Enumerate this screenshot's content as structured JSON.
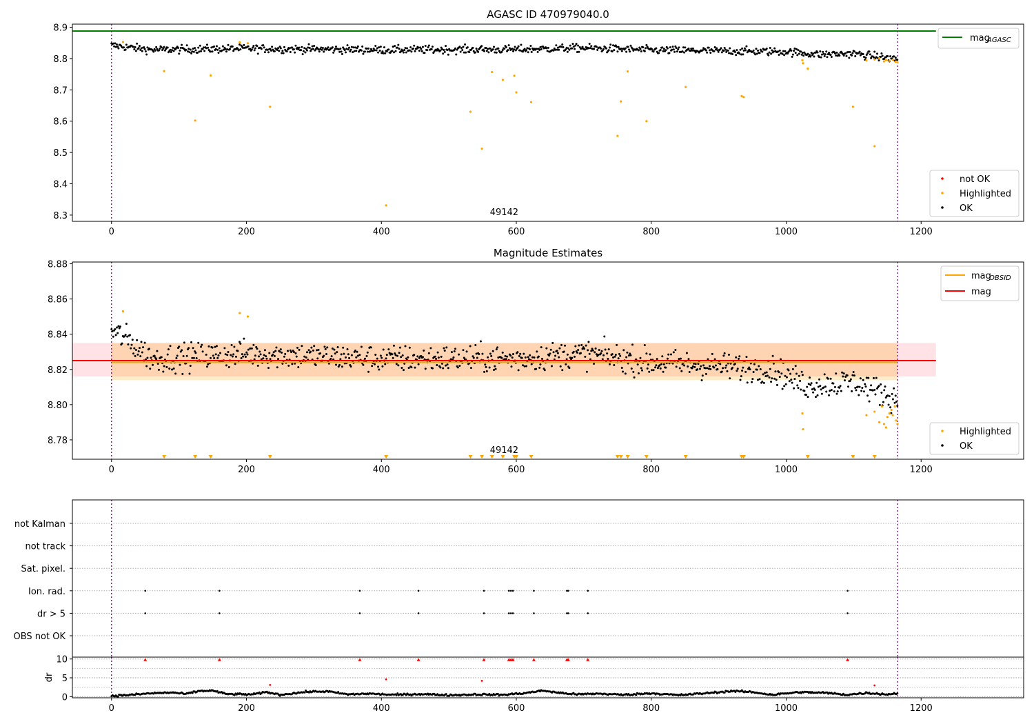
{
  "chart_data": [
    {
      "id": "p1",
      "type": "scatter",
      "title": "AGASC ID 470979040.0",
      "xlabel": "",
      "ylabel": "",
      "xlim": [
        -58,
        1352
      ],
      "ylim": [
        8.28,
        8.91
      ],
      "xticks": [
        0,
        200,
        400,
        600,
        800,
        1000,
        1200
      ],
      "yticks": [
        8.3,
        8.4,
        8.5,
        8.6,
        8.7,
        8.8,
        8.9
      ],
      "ytick_decimals": 1,
      "obsid_label": "49142",
      "obsid_label_x": 582,
      "obsid_boundaries": [
        0,
        1165
      ],
      "mag_agasc": 8.888,
      "mag_agasc_xrange": [
        -58,
        1222
      ],
      "mag_agasc_color": "#008000",
      "series_trend": {
        "name": "OK",
        "color": "#000000",
        "points": [
          [
            0,
            8.842
          ],
          [
            60,
            8.828
          ],
          [
            200,
            8.832
          ],
          [
            400,
            8.828
          ],
          [
            600,
            8.829
          ],
          [
            700,
            8.834
          ],
          [
            800,
            8.827
          ],
          [
            1000,
            8.822
          ],
          [
            1050,
            8.813
          ],
          [
            1100,
            8.816
          ],
          [
            1165,
            8.798
          ]
        ],
        "scatter": 0.014
      },
      "highlighted": {
        "name": "Highlighted",
        "color": "#ffa500",
        "points": [
          [
            17,
            8.853
          ],
          [
            78,
            8.76
          ],
          [
            124,
            8.602
          ],
          [
            147,
            8.746
          ],
          [
            190,
            8.852
          ],
          [
            202,
            8.849
          ],
          [
            235,
            8.646
          ],
          [
            407,
            8.331
          ],
          [
            532,
            8.63
          ],
          [
            549,
            8.512
          ],
          [
            564,
            8.757
          ],
          [
            580,
            8.732
          ],
          [
            597,
            8.745
          ],
          [
            600,
            8.692
          ],
          [
            622,
            8.661
          ],
          [
            750,
            8.553
          ],
          [
            755,
            8.663
          ],
          [
            765,
            8.759
          ],
          [
            793,
            8.6
          ],
          [
            851,
            8.709
          ],
          [
            934,
            8.68
          ],
          [
            937,
            8.677
          ],
          [
            1024,
            8.795
          ],
          [
            1025,
            8.785
          ],
          [
            1032,
            8.768
          ],
          [
            1099,
            8.646
          ],
          [
            1119,
            8.794
          ],
          [
            1131,
            8.52
          ],
          [
            1131,
            8.797
          ],
          [
            1138,
            8.801
          ],
          [
            1145,
            8.791
          ],
          [
            1148,
            8.795
          ],
          [
            1153,
            8.793
          ],
          [
            1158,
            8.796
          ],
          [
            1162,
            8.79
          ],
          [
            1165,
            8.788
          ]
        ]
      },
      "legend_top": [
        {
          "label": "mag",
          "sub": "AGASC",
          "color": "#008000"
        }
      ],
      "legend_bottom": [
        {
          "label": "not OK",
          "color": "#ff0000"
        },
        {
          "label": "Highlighted",
          "color": "#ffa500"
        },
        {
          "label": "OK",
          "color": "#000000"
        }
      ]
    },
    {
      "id": "p2",
      "type": "scatter",
      "title": "Magnitude Estimates",
      "xlabel": "",
      "ylabel": "",
      "xlim": [
        -58,
        1352
      ],
      "ylim": [
        8.769,
        8.881
      ],
      "xticks": [
        0,
        200,
        400,
        600,
        800,
        1000,
        1200
      ],
      "yticks": [
        8.78,
        8.8,
        8.82,
        8.84,
        8.86,
        8.88
      ],
      "ytick_decimals": 2,
      "obsid_label": "49142",
      "obsid_label_x": 582,
      "obsid_boundaries": [
        0,
        1165
      ],
      "mag": 8.825,
      "mag_band": [
        8.816,
        8.835
      ],
      "mag_band_xrange": [
        -58,
        1222
      ],
      "mag_obsid": 8.824,
      "mag_obsid_band": [
        8.814,
        8.835
      ],
      "mag_obsid_xrange": [
        0,
        1165
      ],
      "series_trend": {
        "name": "OK",
        "color": "#000000",
        "points": [
          [
            0,
            8.842
          ],
          [
            20,
            8.838
          ],
          [
            60,
            8.826
          ],
          [
            200,
            8.829
          ],
          [
            400,
            8.826
          ],
          [
            600,
            8.826
          ],
          [
            700,
            8.829
          ],
          [
            800,
            8.824
          ],
          [
            980,
            8.82
          ],
          [
            1030,
            8.811
          ],
          [
            1100,
            8.813
          ],
          [
            1165,
            8.803
          ]
        ],
        "scatter": 0.0085
      },
      "highlighted": {
        "name": "Highlighted",
        "color": "#ffa500",
        "points": [
          [
            17,
            8.853
          ],
          [
            190,
            8.852
          ],
          [
            202,
            8.85
          ],
          [
            1024,
            8.795
          ],
          [
            1025,
            8.786
          ],
          [
            1119,
            8.794
          ],
          [
            1131,
            8.796
          ],
          [
            1138,
            8.79
          ],
          [
            1142,
            8.799
          ],
          [
            1145,
            8.789
          ],
          [
            1148,
            8.787
          ],
          [
            1150,
            8.793
          ],
          [
            1153,
            8.795
          ],
          [
            1156,
            8.797
          ],
          [
            1158,
            8.794
          ],
          [
            1161,
            8.799
          ],
          [
            1163,
            8.791
          ],
          [
            1165,
            8.789
          ]
        ]
      },
      "offscale_markers_x": [
        78,
        124,
        147,
        235,
        407,
        532,
        549,
        564,
        580,
        597,
        600,
        622,
        750,
        755,
        765,
        793,
        851,
        934,
        937,
        1032,
        1099,
        1131
      ],
      "legend_top": [
        {
          "label": "mag",
          "sub": "OBSID",
          "color": "#ffa500"
        },
        {
          "label": "mag",
          "sub": "",
          "color": "#ff0000"
        }
      ],
      "legend_bottom": [
        {
          "label": "Highlighted",
          "color": "#ffa500"
        },
        {
          "label": "OK",
          "color": "#000000"
        }
      ]
    },
    {
      "id": "p3",
      "type": "scatter",
      "title": "",
      "xlabel": "",
      "ylabel": "",
      "xlim": [
        -58,
        1352
      ],
      "flag_rows": [
        "not Kalman",
        "not track",
        "Sat. pixel.",
        "Ion. rad.",
        "dr > 5",
        "OBS not OK"
      ],
      "flag_points": {
        "Ion. rad.": [
          50,
          160,
          368,
          455,
          552,
          589,
          592,
          595,
          626,
          675,
          677,
          706,
          1091
        ],
        "dr > 5": [
          50,
          160,
          368,
          455,
          552,
          589,
          592,
          595,
          626,
          675,
          677,
          706,
          1091
        ]
      },
      "obsid_boundaries": [
        0,
        1165
      ]
    },
    {
      "id": "p4",
      "type": "scatter",
      "title": "",
      "xlabel": "",
      "ylabel": "dr",
      "xlim": [
        -58,
        1352
      ],
      "ylim": [
        -0.3,
        10.5
      ],
      "xticks": [
        0,
        200,
        400,
        600,
        800,
        1000,
        1200
      ],
      "yticks": [
        0,
        5,
        10
      ],
      "ytick_decimals": 0,
      "obsid_boundaries": [
        0,
        1165
      ],
      "clipped_markers": {
        "color": "#ff0000",
        "value": 10,
        "x": [
          50,
          160,
          368,
          455,
          552,
          589,
          592,
          595,
          626,
          675,
          677,
          706,
          1091
        ]
      },
      "outliers": {
        "color": "#ff0000",
        "points": [
          [
            235,
            3.1
          ],
          [
            407,
            4.6
          ],
          [
            549,
            4.2
          ],
          [
            1131,
            3.0
          ]
        ]
      },
      "baseline": {
        "color": "#000000",
        "points": [
          [
            0,
            0.2
          ],
          [
            30,
            0.5
          ],
          [
            60,
            0.9
          ],
          [
            90,
            1.1
          ],
          [
            110,
            0.7
          ],
          [
            130,
            1.5
          ],
          [
            150,
            1.6
          ],
          [
            170,
            0.7
          ],
          [
            210,
            0.6
          ],
          [
            230,
            1.2
          ],
          [
            250,
            0.5
          ],
          [
            290,
            1.3
          ],
          [
            320,
            1.4
          ],
          [
            350,
            0.6
          ],
          [
            380,
            0.8
          ],
          [
            420,
            0.5
          ],
          [
            460,
            0.7
          ],
          [
            500,
            0.4
          ],
          [
            540,
            0.6
          ],
          [
            580,
            0.5
          ],
          [
            610,
            0.9
          ],
          [
            640,
            1.6
          ],
          [
            660,
            1.1
          ],
          [
            690,
            0.6
          ],
          [
            720,
            0.8
          ],
          [
            760,
            0.5
          ],
          [
            800,
            0.9
          ],
          [
            840,
            0.4
          ],
          [
            880,
            0.9
          ],
          [
            920,
            1.5
          ],
          [
            950,
            1.2
          ],
          [
            980,
            0.5
          ],
          [
            1020,
            1.2
          ],
          [
            1060,
            1.0
          ],
          [
            1090,
            0.5
          ],
          [
            1120,
            1.0
          ],
          [
            1150,
            0.6
          ],
          [
            1165,
            0.9
          ]
        ]
      }
    }
  ]
}
